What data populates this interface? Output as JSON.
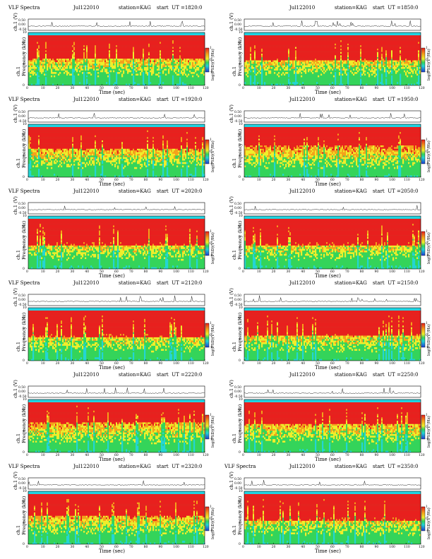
{
  "chart_data": [
    {
      "type": "heatmap",
      "title": {
        "left": "VLF Spectra",
        "date": "Jul122010",
        "station": "station=KAG",
        "start": "start  UT =1820:0"
      },
      "top_ylabel": "ch.1 (V)",
      "top_yticks": [
        "0.50",
        "0.00",
        "-0.50"
      ],
      "ylabel": "ch.1\nFrequency (kHz)",
      "yticks": [
        "10",
        "8",
        "6",
        "4",
        "2",
        "0"
      ],
      "xlabel": "Time (sec)",
      "xticks": [
        "0",
        "10",
        "20",
        "30",
        "40",
        "50",
        "60",
        "70",
        "80",
        "90",
        "100",
        "110",
        "120"
      ],
      "xlim": [
        0,
        120
      ],
      "ylim": [
        0,
        10
      ],
      "colorbar_label": "log(PSD)(V²/Hz)",
      "colorbar_ticks": [
        "1",
        "0",
        "-1"
      ]
    },
    {
      "type": "heatmap",
      "title": {
        "left": "",
        "date": "Jul122010",
        "station": "station=KAG",
        "start": "start  UT =1850:0"
      },
      "top_ylabel": "ch.1 (V)",
      "top_yticks": [
        "0.50",
        "0.00",
        "-0.50"
      ],
      "ylabel": "ch.1\nFrequency (kHz)",
      "yticks": [
        "10",
        "8",
        "6",
        "4",
        "2",
        "0"
      ],
      "xlabel": "Time (sec)",
      "xticks": [
        "0",
        "10",
        "20",
        "30",
        "40",
        "50",
        "60",
        "70",
        "80",
        "90",
        "100",
        "110",
        "120"
      ],
      "xlim": [
        0,
        120
      ],
      "ylim": [
        0,
        10
      ],
      "colorbar_label": "log(PSD)(V²/Hz)",
      "colorbar_ticks": [
        "1",
        "0",
        "-1"
      ]
    },
    {
      "type": "heatmap",
      "title": {
        "left": "VLF Spectra",
        "date": "Jul122010",
        "station": "station=KAG",
        "start": "start  UT =1920:0"
      },
      "top_ylabel": "ch.1 (V)",
      "top_yticks": [
        "0.50",
        "0.00",
        "-0.50"
      ],
      "ylabel": "ch.1\nFrequency (kHz)",
      "yticks": [
        "10",
        "8",
        "6",
        "4",
        "2",
        "0"
      ],
      "xlabel": "Time (sec)",
      "xticks": [
        "0",
        "10",
        "20",
        "30",
        "40",
        "50",
        "60",
        "70",
        "80",
        "90",
        "100",
        "110",
        "120"
      ],
      "xlim": [
        0,
        120
      ],
      "ylim": [
        0,
        10
      ],
      "colorbar_label": "log(PSD)(V²/Hz)",
      "colorbar_ticks": [
        "1",
        "0",
        "-1"
      ]
    },
    {
      "type": "heatmap",
      "title": {
        "left": "",
        "date": "Jul122010",
        "station": "station=KAG",
        "start": "start  UT =1950:0"
      },
      "top_ylabel": "ch.1 (V)",
      "top_yticks": [
        "0.50",
        "0.00",
        "-0.50"
      ],
      "ylabel": "ch.1\nFrequency (kHz)",
      "yticks": [
        "10",
        "8",
        "6",
        "4",
        "2",
        "0"
      ],
      "xlabel": "Time (sec)",
      "xticks": [
        "0",
        "10",
        "20",
        "30",
        "40",
        "50",
        "60",
        "70",
        "80",
        "90",
        "100",
        "110",
        "120"
      ],
      "xlim": [
        0,
        120
      ],
      "ylim": [
        0,
        10
      ],
      "colorbar_label": "log(PSD)(V²/Hz)",
      "colorbar_ticks": [
        "1",
        "0",
        "-1"
      ]
    },
    {
      "type": "heatmap",
      "title": {
        "left": "VLF Spectra",
        "date": "Jul122010",
        "station": "station=KAG",
        "start": "start  UT =2020:0"
      },
      "top_ylabel": "ch.1 (V)",
      "top_yticks": [
        "0.50",
        "0.00",
        "-0.50"
      ],
      "ylabel": "ch.1\nFrequency (kHz)",
      "yticks": [
        "10",
        "8",
        "6",
        "4",
        "2",
        "0"
      ],
      "xlabel": "Time (sec)",
      "xticks": [
        "0",
        "10",
        "20",
        "30",
        "40",
        "50",
        "60",
        "70",
        "80",
        "90",
        "100",
        "110",
        "120"
      ],
      "xlim": [
        0,
        120
      ],
      "ylim": [
        0,
        10
      ],
      "colorbar_label": "log(PSD)(V²/Hz)",
      "colorbar_ticks": [
        "1",
        "0",
        "-1"
      ]
    },
    {
      "type": "heatmap",
      "title": {
        "left": "",
        "date": "Jul122010",
        "station": "station=KAG",
        "start": "start  UT =2050:0"
      },
      "top_ylabel": "ch.1 (V)",
      "top_yticks": [
        "0.50",
        "0.00",
        "-0.50"
      ],
      "ylabel": "ch.1\nFrequency (kHz)",
      "yticks": [
        "10",
        "8",
        "6",
        "4",
        "2",
        "0"
      ],
      "xlabel": "Time (sec)",
      "xticks": [
        "0",
        "10",
        "20",
        "30",
        "40",
        "50",
        "60",
        "70",
        "80",
        "90",
        "100",
        "110",
        "120"
      ],
      "xlim": [
        0,
        120
      ],
      "ylim": [
        0,
        10
      ],
      "colorbar_label": "log(PSD)(V²/Hz)",
      "colorbar_ticks": [
        "1",
        "0",
        "-1"
      ]
    },
    {
      "type": "heatmap",
      "title": {
        "left": "VLF Spectra",
        "date": "Jul122010",
        "station": "station=KAG",
        "start": "start  UT =2120:0"
      },
      "top_ylabel": "ch.1 (V)",
      "top_yticks": [
        "0.50",
        "0.00",
        "-0.50"
      ],
      "ylabel": "ch.1\nFrequency (kHz)",
      "yticks": [
        "10",
        "8",
        "6",
        "4",
        "2",
        "0"
      ],
      "xlabel": "Time (sec)",
      "xticks": [
        "0",
        "10",
        "20",
        "30",
        "40",
        "50",
        "60",
        "70",
        "80",
        "90",
        "100",
        "110",
        "120"
      ],
      "xlim": [
        0,
        120
      ],
      "ylim": [
        0,
        10
      ],
      "colorbar_label": "log(PSD)(V²/Hz)",
      "colorbar_ticks": [
        "1",
        "0",
        "-1"
      ]
    },
    {
      "type": "heatmap",
      "title": {
        "left": "",
        "date": "Jul122010",
        "station": "station=KAG",
        "start": "start  UT =2150:0"
      },
      "top_ylabel": "ch.1 (V)",
      "top_yticks": [
        "0.50",
        "0.00",
        "-0.50"
      ],
      "ylabel": "ch.1\nFrequency (kHz)",
      "yticks": [
        "10",
        "8",
        "6",
        "4",
        "2",
        "0"
      ],
      "xlabel": "Time (sec)",
      "xticks": [
        "0",
        "10",
        "20",
        "30",
        "40",
        "50",
        "60",
        "70",
        "80",
        "90",
        "100",
        "110",
        "120"
      ],
      "xlim": [
        0,
        120
      ],
      "ylim": [
        0,
        10
      ],
      "colorbar_label": "log(PSD)(V²/Hz)",
      "colorbar_ticks": [
        "1",
        "0",
        "-1"
      ]
    },
    {
      "type": "heatmap",
      "title": {
        "left": "",
        "date": "Jul122010",
        "station": "station=KAG",
        "start": "start  UT =2220:0"
      },
      "top_ylabel": "ch.1 (V)",
      "top_yticks": [
        "0.50",
        "0.00",
        "-0.50"
      ],
      "ylabel": "ch.1\nFrequency (kHz)",
      "yticks": [
        "10",
        "8",
        "6",
        "4",
        "2",
        "0"
      ],
      "xlabel": "Time (sec)",
      "xticks": [
        "0",
        "10",
        "20",
        "30",
        "40",
        "50",
        "60",
        "70",
        "80",
        "90",
        "100",
        "110",
        "120"
      ],
      "xlim": [
        0,
        120
      ],
      "ylim": [
        0,
        10
      ],
      "colorbar_label": "log(PSD)(V²/Hz)",
      "colorbar_ticks": [
        "1",
        "0",
        "-1"
      ]
    },
    {
      "type": "heatmap",
      "title": {
        "left": "",
        "date": "Jul122010",
        "station": "station=KAG",
        "start": "start  UT =2250:0"
      },
      "top_ylabel": "ch.1 (V)",
      "top_yticks": [
        "0.50",
        "0.00",
        "-0.50"
      ],
      "ylabel": "ch.1\nFrequency (kHz)",
      "yticks": [
        "10",
        "8",
        "6",
        "4",
        "2",
        "0"
      ],
      "xlabel": "Time (sec)",
      "xticks": [
        "0",
        "10",
        "20",
        "30",
        "40",
        "50",
        "60",
        "70",
        "80",
        "90",
        "100",
        "110",
        "120"
      ],
      "xlim": [
        0,
        120
      ],
      "ylim": [
        0,
        10
      ],
      "colorbar_label": "log(PSD)(V²/Hz)",
      "colorbar_ticks": [
        "1",
        "0",
        "-1"
      ]
    },
    {
      "type": "heatmap",
      "title": {
        "left": "VLF Spectra",
        "date": "Jul122010",
        "station": "station=KAG",
        "start": "start  UT =2320:0"
      },
      "top_ylabel": "ch.1 (V)",
      "top_yticks": [
        "0.50",
        "0.00",
        "-0.50"
      ],
      "ylabel": "ch.1\nFrequency (kHz)",
      "yticks": [
        "10",
        "8",
        "6",
        "4",
        "2",
        "0"
      ],
      "xlabel": "Time (sec)",
      "xticks": [
        "0",
        "10",
        "20",
        "30",
        "40",
        "50",
        "60",
        "70",
        "80",
        "90",
        "100",
        "110",
        "120"
      ],
      "xlim": [
        0,
        120
      ],
      "ylim": [
        0,
        10
      ],
      "colorbar_label": "log(PSD)(V²/Hz)",
      "colorbar_ticks": [
        "1",
        "0",
        "-1"
      ]
    },
    {
      "type": "heatmap",
      "title": {
        "left": "VLF Spectra",
        "date": "Jul122010",
        "station": "station=KAG",
        "start": "start  UT =2350:0"
      },
      "top_ylabel": "ch.1 (V)",
      "top_yticks": [
        "0.50",
        "0.00",
        "-0.50"
      ],
      "ylabel": "ch.1\nFrequency (kHz)",
      "yticks": [
        "10",
        "8",
        "6",
        "4",
        "2",
        "0"
      ],
      "xlabel": "Time (sec)",
      "xticks": [
        "0",
        "10",
        "20",
        "30",
        "40",
        "50",
        "60",
        "70",
        "80",
        "90",
        "100",
        "110",
        "120"
      ],
      "xlim": [
        0,
        120
      ],
      "ylim": [
        0,
        10
      ],
      "colorbar_label": "log(PSD)(V²/Hz)",
      "colorbar_ticks": [
        "1",
        "0",
        "-1"
      ]
    }
  ],
  "colors": {
    "band_top": "#22d3e0",
    "red": "#e8201e",
    "orange": "#f5a21b",
    "yellow": "#f0ee2b",
    "green": "#34d45a",
    "cyan": "#23d5d5",
    "blue": "#1e3bd6"
  }
}
